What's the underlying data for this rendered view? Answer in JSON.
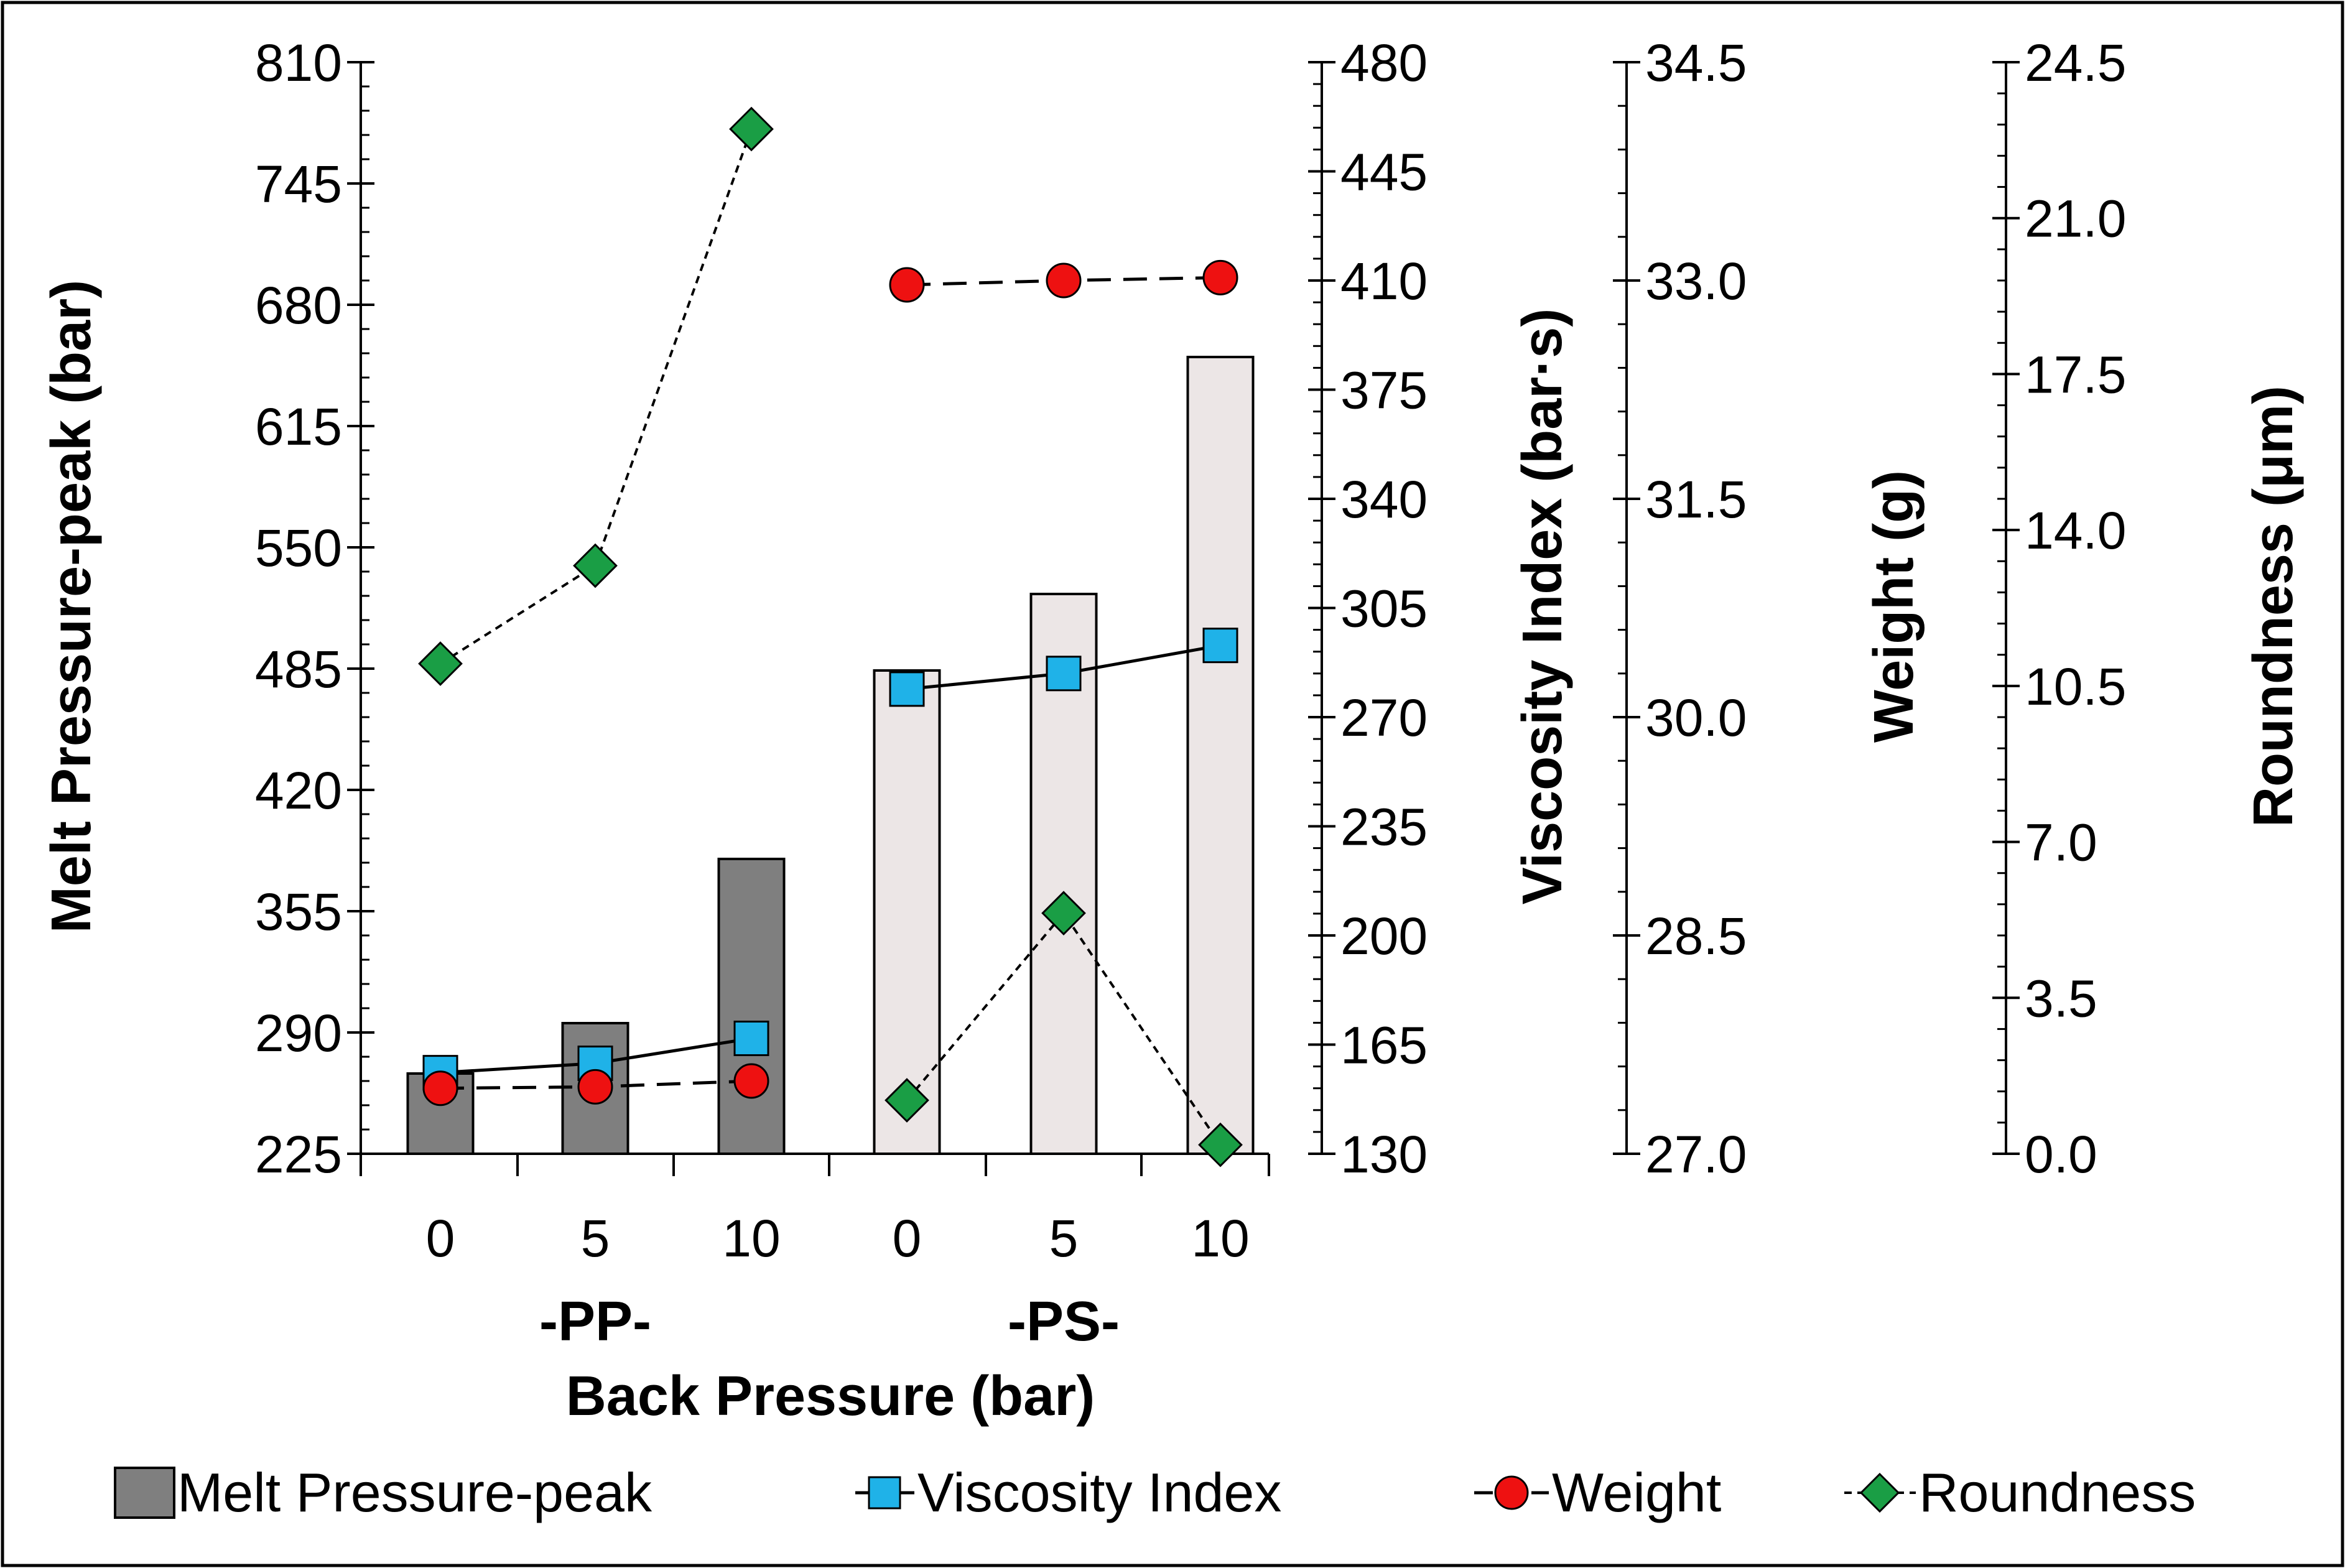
{
  "chart_data": {
    "type": "bar-line combo",
    "xlabel": "Back Pressure (bar)",
    "groups": [
      {
        "label": "-PP-",
        "categories": [
          "0",
          "5",
          "10"
        ]
      },
      {
        "label": "-PS-",
        "categories": [
          "0",
          "5",
          "10"
        ]
      }
    ],
    "axes": {
      "melt": {
        "label": "Melt Pressure-peak (bar)",
        "ylim": [
          225,
          810
        ],
        "ticks": [
          "225",
          "290",
          "355",
          "420",
          "485",
          "550",
          "615",
          "680",
          "745",
          "810"
        ],
        "tick_values": [
          225,
          290,
          355,
          420,
          485,
          550,
          615,
          680,
          745,
          810
        ]
      },
      "viscosity": {
        "label": "Viscosity Index (bar·s)",
        "ylim": [
          130,
          480
        ],
        "ticks": [
          "130",
          "165",
          "200",
          "235",
          "270",
          "305",
          "340",
          "375",
          "410",
          "445",
          "480"
        ],
        "tick_values": [
          130,
          165,
          200,
          235,
          270,
          305,
          340,
          375,
          410,
          445,
          480
        ]
      },
      "weight": {
        "label": "Weight (g)",
        "ylim": [
          27.0,
          34.5
        ],
        "ticks": [
          "27.0",
          "28.5",
          "30.0",
          "31.5",
          "33.0",
          "34.5"
        ],
        "tick_values": [
          27.0,
          28.5,
          30.0,
          31.5,
          33.0,
          34.5
        ]
      },
      "roundness": {
        "label": "Roundness (μm)",
        "ylim": [
          0.0,
          24.5
        ],
        "ticks": [
          "0.0",
          "3.5",
          "7.0",
          "10.5",
          "14.0",
          "17.5",
          "21.0",
          "24.5"
        ],
        "tick_values": [
          0.0,
          3.5,
          7.0,
          10.5,
          14.0,
          17.5,
          21.0,
          24.5
        ]
      }
    },
    "series": [
      {
        "name": "Melt Pressure-peak",
        "axis": "melt",
        "kind": "bar",
        "values": [
          268,
          295,
          383,
          484,
          525,
          652
        ]
      },
      {
        "name": "Viscosity Index",
        "axis": "viscosity",
        "kind": "line",
        "values": [
          156,
          159,
          167,
          279,
          284,
          293
        ]
      },
      {
        "name": "Weight",
        "axis": "weight",
        "kind": "line",
        "values": [
          27.45,
          27.46,
          27.5,
          32.97,
          33.0,
          33.02
        ]
      },
      {
        "name": "Roundness",
        "axis": "roundness",
        "kind": "line",
        "values": [
          11.0,
          13.2,
          23.0,
          1.2,
          5.4,
          0.2
        ]
      }
    ],
    "legend": [
      "Melt Pressure-peak",
      "Viscosity Index",
      "Weight",
      "Roundness"
    ],
    "legend_position": "bottom"
  },
  "colors": {
    "pp_bar": "#7f7f7f",
    "ps_bar": "#ece6e6",
    "viscosity": "#1fb2e8",
    "weight": "#ee1111",
    "roundness": "#1a9e45"
  }
}
